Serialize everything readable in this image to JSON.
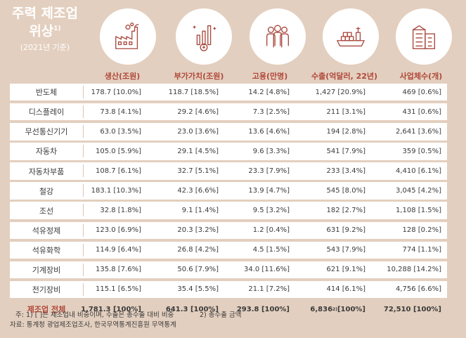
{
  "title": {
    "line1": "주력 제조업",
    "line2": "위상",
    "sup": "1)",
    "subtitle": "(2021년 기준)"
  },
  "icons": [
    "factory-icon",
    "value-added-chart-icon",
    "employees-icon",
    "cargo-ship-icon",
    "building-icon"
  ],
  "columns": [
    "생산(조원)",
    "부가가치(조원)",
    "고용(만명)",
    "수출(억달러, 22년)",
    "사업체수(개)"
  ],
  "rows": [
    {
      "name": "반도체",
      "production": "178.7 [10.0%]",
      "value_added": "118.7 [18.5%]",
      "employment": "14.2 [4.8%]",
      "export": "1,427 [20.9%]",
      "firms": "469 [0.6%]"
    },
    {
      "name": "디스플레이",
      "production": "73.8 [4.1%]",
      "value_added": "29.2 [4.6%]",
      "employment": "7.3 [2.5%]",
      "export": "211 [3.1%]",
      "firms": "431 [0.6%]"
    },
    {
      "name": "무선통신기기",
      "production": "63.0 [3.5%]",
      "value_added": "23.0 [3.6%]",
      "employment": "13.6 [4.6%]",
      "export": "194 [2.8%]",
      "firms": "2,641 [3.6%]"
    },
    {
      "name": "자동차",
      "production": "105.0 [5.9%]",
      "value_added": "29.1 [4.5%]",
      "employment": "9.6 [3.3%]",
      "export": "541 [7.9%]",
      "firms": "359 [0.5%]"
    },
    {
      "name": "자동차부품",
      "production": "108.7 [6.1%]",
      "value_added": "32.7 [5.1%]",
      "employment": "23.3 [7.9%]",
      "export": "233 [3.4%]",
      "firms": "4,410 [6.1%]"
    },
    {
      "name": "철강",
      "production": "183.1 [10.3%]",
      "value_added": "42.3 [6.6%]",
      "employment": "13.9 [4.7%]",
      "export": "545 [8.0%]",
      "firms": "3,045 [4.2%]"
    },
    {
      "name": "조선",
      "production": "32.8 [1.8%]",
      "value_added": "9.1 [1.4%]",
      "employment": "9.5 [3.2%]",
      "export": "182 [2.7%]",
      "firms": "1,108 [1.5%]"
    },
    {
      "name": "석유정제",
      "production": "123.0 [6.9%]",
      "value_added": "20.3 [3.2%]",
      "employment": "1.2 [0.4%]",
      "export": "631 [9.2%]",
      "firms": "128 [0.2%]"
    },
    {
      "name": "석유화학",
      "production": "114.9 [6.4%]",
      "value_added": "26.8 [4.2%]",
      "employment": "4.5 [1.5%]",
      "export": "543 [7.9%]",
      "firms": "774 [1.1%]"
    },
    {
      "name": "기계장비",
      "production": "135.8 [7.6%]",
      "value_added": "50.6 [7.9%]",
      "employment": "34.0 [11.6%]",
      "export": "621 [9.1%]",
      "firms": "10,288 [14.2%]"
    },
    {
      "name": "전기장비",
      "production": "115.1 [6.5%]",
      "value_added": "35.4 [5.5%]",
      "employment": "21.1 [7.2%]",
      "export": "414 [6.1%]",
      "firms": "4,756 [6.6%]"
    }
  ],
  "total": {
    "name": "제조업 전체",
    "production": "1,781.3 [100%]",
    "value_added": "641.3 [100%]",
    "employment": "293.8 [100%]",
    "export_value": "6,836",
    "export_sup": "2)",
    "export_share": " [100%]",
    "firms": "72,510 [100%]"
  },
  "notes": {
    "note1": "주: 1) [   ]는 제조업내 비중이며, 수출은 총수출 대비 비중",
    "note2": "2) 총수출 금액",
    "source": "자료: 통계청 광업제조업조사, 한국무역통계진흥원 무역통계"
  },
  "colors": {
    "background": "#e3cfbf",
    "accent": "#b0483a",
    "icon_stroke": "#a8483c",
    "row_bg": "#ffffff"
  }
}
